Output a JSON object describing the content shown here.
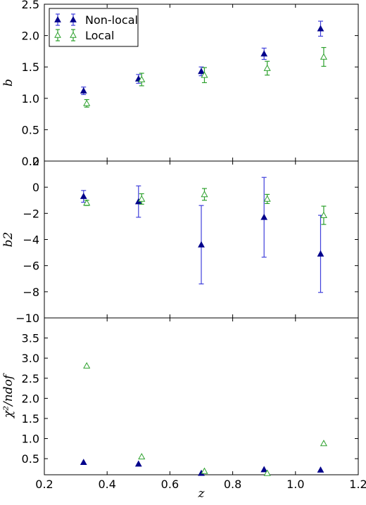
{
  "chart_data": [
    {
      "type": "scatter",
      "ylabel": "b",
      "ylim": [
        0.0,
        2.5
      ],
      "yticks": [
        "0.0",
        "0.5",
        "1.0",
        "1.5",
        "2.0",
        "2.5"
      ],
      "yticks_values": [
        0.0,
        0.5,
        1.0,
        1.5,
        2.0,
        2.5
      ],
      "legend": {
        "placement": "top-left",
        "entries": [
          "Non-local",
          "Local"
        ]
      },
      "series": [
        {
          "name": "Non-local",
          "x": [
            0.325,
            0.5,
            0.7,
            0.9,
            1.08
          ],
          "y": [
            1.12,
            1.31,
            1.43,
            1.71,
            2.11
          ],
          "yerr": [
            0.06,
            0.07,
            0.07,
            0.09,
            0.12
          ],
          "color": "#00008b",
          "marker": "filled-triangle",
          "errcolor": "#3f3fdb"
        },
        {
          "name": "Local",
          "x": [
            0.335,
            0.51,
            0.71,
            0.91,
            1.09
          ],
          "y": [
            0.92,
            1.3,
            1.37,
            1.48,
            1.66
          ],
          "yerr": [
            0.06,
            0.1,
            0.12,
            0.11,
            0.15
          ],
          "color": "#2ca02c",
          "marker": "open-triangle",
          "errcolor": "#2ca02c"
        }
      ]
    },
    {
      "type": "scatter",
      "ylabel": "b2",
      "ylim": [
        -10,
        2
      ],
      "yticks": [
        "−10",
        "−8",
        "−6",
        "−4",
        "−2",
        "0",
        "2"
      ],
      "yticks_values": [
        -10,
        -8,
        -6,
        -4,
        -2,
        0,
        2
      ],
      "series": [
        {
          "name": "Non-local",
          "x": [
            0.325,
            0.5,
            0.7,
            0.9,
            1.08
          ],
          "y": [
            -0.7,
            -1.1,
            -4.4,
            -2.3,
            -5.1
          ],
          "yerr": [
            0.45,
            1.2,
            3.0,
            3.05,
            2.95
          ],
          "color": "#00008b",
          "marker": "filled-triangle",
          "errcolor": "#3f3fdb"
        },
        {
          "name": "Local",
          "x": [
            0.335,
            0.51,
            0.71,
            0.91,
            1.09
          ],
          "y": [
            -1.2,
            -0.9,
            -0.55,
            -0.9,
            -2.15
          ],
          "yerr": [
            0.2,
            0.4,
            0.45,
            0.35,
            0.7
          ],
          "color": "#2ca02c",
          "marker": "open-triangle",
          "errcolor": "#2ca02c"
        }
      ]
    },
    {
      "type": "scatter",
      "ylabel": "χ²/ndof",
      "ylim": [
        0.1,
        4.0
      ],
      "yticks": [
        "0.5",
        "1.0",
        "1.5",
        "2.0",
        "2.5",
        "3.0",
        "3.5"
      ],
      "yticks_values": [
        0.5,
        1.0,
        1.5,
        2.0,
        2.5,
        3.0,
        3.5
      ],
      "xlabel": "z",
      "xlim": [
        0.2,
        1.2
      ],
      "xticks": [
        "0.2",
        "0.4",
        "0.6",
        "0.8",
        "1.0",
        "1.2"
      ],
      "xticks_values": [
        0.2,
        0.4,
        0.6,
        0.8,
        1.0,
        1.2
      ],
      "series": [
        {
          "name": "Non-local",
          "x": [
            0.325,
            0.5,
            0.7,
            0.9,
            1.08
          ],
          "y": [
            0.41,
            0.37,
            0.14,
            0.23,
            0.22
          ],
          "color": "#00008b",
          "marker": "filled-triangle"
        },
        {
          "name": "Local",
          "x": [
            0.335,
            0.51,
            0.71,
            0.91,
            1.09
          ],
          "y": [
            2.81,
            0.55,
            0.19,
            0.14,
            0.88
          ],
          "color": "#2ca02c",
          "marker": "open-triangle"
        }
      ]
    }
  ]
}
